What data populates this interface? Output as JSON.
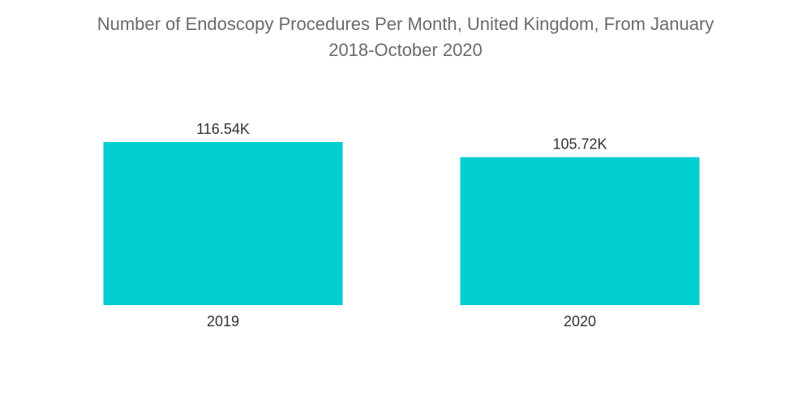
{
  "chart_data": {
    "type": "bar",
    "title_lines": [
      "Number of Endoscopy Procedures Per Month, United Kingdom, From January",
      "2018-October 2020"
    ],
    "categories": [
      "2019",
      "2020"
    ],
    "values": [
      116.54,
      105.72
    ],
    "value_labels": [
      "116.54K",
      "105.72K"
    ],
    "xlabel": "",
    "ylabel": "",
    "ylim": [
      0,
      116.54
    ],
    "grid": false,
    "legend": "none",
    "colors": {
      "bar": "#00CED1",
      "title": "#6b6b6b",
      "text": "#333333"
    }
  }
}
